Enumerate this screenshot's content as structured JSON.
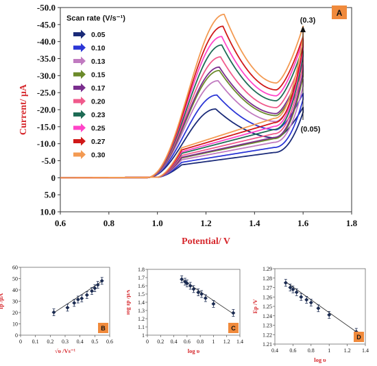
{
  "chart_data": [
    {
      "id": "A",
      "type": "line",
      "panel_label": "A",
      "xlabel": "Potential/ V",
      "ylabel": "Current/ μA",
      "xlim": [
        0.6,
        1.8
      ],
      "ylim": [
        10.0,
        -50.0
      ],
      "x_ticks": [
        "0.6",
        "0.8",
        "1.0",
        "1.2",
        "1.4",
        "1.6",
        "1.8"
      ],
      "y_ticks": [
        "-50.0",
        "-45.0",
        "-40.0",
        "-35.0",
        "-30.0",
        "-25.0",
        "-20.0",
        "-15.0",
        "-10.0",
        "-5.0",
        "0",
        "5.0",
        "10.0"
      ],
      "legend_title": "Scan rate (V/s⁻¹)",
      "legend_position": "top-left",
      "annotations": [
        "(0.3)",
        "(0.05)"
      ],
      "series": [
        {
          "name": "0.05",
          "color": "#1a2a78",
          "peak_x": 1.24,
          "peak_y": -20.2,
          "end_fwd_y": -20.7
        },
        {
          "name": "0.10",
          "color": "#2b36d6",
          "peak_x": 1.245,
          "peak_y": -24.3,
          "end_fwd_y": -24.8
        },
        {
          "name": "0.13",
          "color": "#c07ac0",
          "peak_x": 1.25,
          "peak_y": -28.5,
          "end_fwd_y": -29.0
        },
        {
          "name": "0.15",
          "color": "#6b8a2a",
          "peak_x": 1.255,
          "peak_y": -31.5,
          "end_fwd_y": -32.0
        },
        {
          "name": "0.17",
          "color": "#7a2e8e",
          "peak_x": 1.255,
          "peak_y": -32.5,
          "end_fwd_y": -33.5
        },
        {
          "name": "0.20",
          "color": "#f05a8c",
          "peak_x": 1.26,
          "peak_y": -35.5,
          "end_fwd_y": -36.0
        },
        {
          "name": "0.23",
          "color": "#1e6b55",
          "peak_x": 1.265,
          "peak_y": -39.0,
          "end_fwd_y": -38.5
        },
        {
          "name": "0.25",
          "color": "#ff44c8",
          "peak_x": 1.265,
          "peak_y": -41.5,
          "end_fwd_y": -40.5
        },
        {
          "name": "0.27",
          "color": "#d01818",
          "peak_x": 1.27,
          "peak_y": -44.5,
          "end_fwd_y": -41.5
        },
        {
          "name": "0.30",
          "color": "#f39a52",
          "peak_x": 1.275,
          "peak_y": -48.0,
          "end_fwd_y": -44.5
        }
      ]
    },
    {
      "id": "B",
      "type": "scatter",
      "panel_label": "B",
      "xlabel": "√υ /Vs⁻¹",
      "ylabel": "Ip /μA",
      "xlim": [
        0,
        0.6
      ],
      "ylim": [
        0,
        60
      ],
      "x_ticks": [
        "0",
        "0.1",
        "0.2",
        "0.3",
        "0.4",
        "0.5",
        "0.6"
      ],
      "y_ticks": [
        "0",
        "10",
        "20",
        "30",
        "40",
        "50",
        "60"
      ],
      "x": [
        0.224,
        0.316,
        0.361,
        0.387,
        0.412,
        0.447,
        0.48,
        0.5,
        0.52,
        0.548
      ],
      "y": [
        20.2,
        24.3,
        28.5,
        31.5,
        32.5,
        35.5,
        39.0,
        41.5,
        44.5,
        48.0
      ],
      "fit_line": [
        [
          0.224,
          19.8
        ],
        [
          0.548,
          47.6
        ]
      ]
    },
    {
      "id": "C",
      "type": "scatter",
      "panel_label": "C",
      "xlabel": "log υ",
      "ylabel": "log Ip /μA",
      "xlim": [
        0,
        1.4
      ],
      "ylim": [
        1,
        1.8
      ],
      "x_ticks": [
        "0",
        "0.2",
        "0.4",
        "0.6",
        "0.8",
        "1",
        "1.2",
        "1.4"
      ],
      "y_ticks": [
        "1",
        "1.1",
        "1.2",
        "1.3",
        "1.4",
        "1.5",
        "1.6",
        "1.7",
        "1.8"
      ],
      "x": [
        0.52,
        0.57,
        0.6,
        0.65,
        0.7,
        0.77,
        0.82,
        0.88,
        1.0,
        1.3
      ],
      "y": [
        1.68,
        1.65,
        1.63,
        1.6,
        1.56,
        1.52,
        1.5,
        1.45,
        1.38,
        1.27
      ],
      "fit_line": [
        [
          0.52,
          1.68
        ],
        [
          1.3,
          1.26
        ]
      ]
    },
    {
      "id": "D",
      "type": "scatter",
      "panel_label": "D",
      "xlabel": "log υ",
      "ylabel": "Ep /V",
      "xlim": [
        0.4,
        1.4
      ],
      "ylim": [
        1.21,
        1.29
      ],
      "x_ticks": [
        "0.4",
        "0.6",
        "0.8",
        "1",
        "1.2",
        "1.4"
      ],
      "y_ticks": [
        "1.21",
        "1.22",
        "1.23",
        "1.24",
        "1.25",
        "1.26",
        "1.27",
        "1.28",
        "1.29"
      ],
      "x": [
        0.52,
        0.57,
        0.6,
        0.64,
        0.69,
        0.75,
        0.8,
        0.88,
        1.0,
        1.3
      ],
      "y": [
        1.275,
        1.27,
        1.268,
        1.265,
        1.26,
        1.257,
        1.254,
        1.248,
        1.241,
        1.223
      ],
      "fit_line": [
        [
          0.52,
          1.276
        ],
        [
          1.3,
          1.223
        ]
      ]
    }
  ]
}
